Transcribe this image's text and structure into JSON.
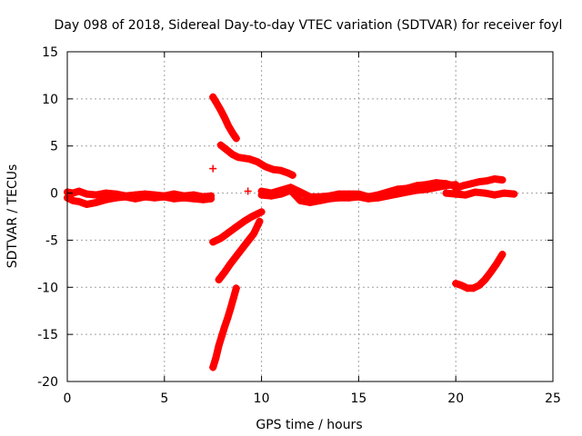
{
  "chart_data": {
    "type": "scatter",
    "title": "Day 098 of 2018, Sidereal Day-to-day VTEC variation (SDTVAR) for receiver foyl",
    "xlabel": "GPS time / hours",
    "ylabel": "SDTVAR / TECUs",
    "xlim": [
      0,
      25
    ],
    "ylim": [
      -20,
      15
    ],
    "xticks": [
      0,
      5,
      10,
      15,
      20,
      25
    ],
    "yticks": [
      -20,
      -15,
      -10,
      -5,
      0,
      5,
      10,
      15
    ],
    "xtick_labels": [
      "0",
      "5",
      "10",
      "15",
      "20",
      "25"
    ],
    "ytick_labels": [
      "-20",
      "-15",
      "-10",
      "-5",
      "0",
      "5",
      "10",
      "15"
    ],
    "grid": true,
    "marker": "+",
    "color": "#ff0000",
    "series": [
      {
        "name": "band-early-a",
        "x": [
          0.0,
          0.3,
          0.6,
          1.0,
          1.5,
          2.0,
          2.5,
          3.0,
          3.5,
          4.0,
          4.5,
          5.0,
          5.5,
          6.0,
          6.5,
          7.0,
          7.4
        ],
        "y": [
          -0.5,
          -0.8,
          -0.9,
          -1.2,
          -1.0,
          -0.7,
          -0.5,
          -0.4,
          -0.6,
          -0.4,
          -0.5,
          -0.4,
          -0.6,
          -0.5,
          -0.6,
          -0.7,
          -0.6
        ]
      },
      {
        "name": "band-early-b",
        "x": [
          0.0,
          0.3,
          0.6,
          1.0,
          1.5,
          2.0,
          2.5,
          3.0,
          3.5,
          4.0,
          4.5,
          5.0,
          5.5,
          6.0,
          6.5,
          7.0,
          7.4
        ],
        "y": [
          0.1,
          0.0,
          0.2,
          -0.1,
          -0.2,
          0.0,
          -0.1,
          -0.3,
          -0.2,
          -0.1,
          -0.2,
          -0.3,
          -0.1,
          -0.3,
          -0.2,
          -0.4,
          -0.3
        ]
      },
      {
        "name": "band-mid-a",
        "x": [
          10.0,
          10.5,
          11.0,
          11.5,
          12.0,
          12.5,
          13.0,
          13.5,
          14.0,
          14.5,
          15.0,
          15.5,
          16.0,
          16.5,
          17.0,
          17.5,
          18.0,
          18.5,
          19.0,
          19.5,
          20.0
        ],
        "y": [
          -0.2,
          -0.3,
          -0.1,
          0.3,
          -0.8,
          -1.0,
          -0.8,
          -0.6,
          -0.5,
          -0.5,
          -0.4,
          -0.6,
          -0.5,
          -0.3,
          -0.1,
          0.1,
          0.3,
          0.4,
          0.6,
          0.8,
          0.9
        ]
      },
      {
        "name": "band-mid-b",
        "x": [
          10.0,
          10.5,
          11.0,
          11.5,
          12.0,
          12.5,
          13.0,
          13.5,
          14.0,
          14.5,
          15.0,
          15.5,
          16.0,
          16.5,
          17.0,
          17.5,
          18.0,
          18.5,
          19.0,
          19.5,
          20.0
        ],
        "y": [
          0.2,
          0.0,
          0.3,
          0.6,
          0.1,
          -0.4,
          -0.4,
          -0.3,
          -0.1,
          -0.1,
          -0.1,
          -0.4,
          -0.2,
          0.1,
          0.4,
          0.5,
          0.8,
          0.9,
          1.1,
          1.0,
          0.7
        ]
      },
      {
        "name": "band-late-a",
        "x": [
          20.0,
          20.4,
          20.8,
          21.2,
          21.6,
          22.0,
          22.4
        ],
        "y": [
          0.5,
          0.8,
          1.0,
          1.2,
          1.3,
          1.5,
          1.4
        ]
      },
      {
        "name": "band-late-b",
        "x": [
          19.5,
          20.0,
          20.5,
          21.0,
          21.5,
          22.0,
          22.5,
          23.0
        ],
        "y": [
          0.0,
          -0.1,
          -0.2,
          0.1,
          0.0,
          -0.2,
          0.0,
          -0.1
        ]
      },
      {
        "name": "arc-upper-1",
        "x": [
          7.5,
          7.7,
          7.9,
          8.1,
          8.3,
          8.5,
          8.7
        ],
        "y": [
          10.2,
          9.5,
          8.8,
          8.0,
          7.1,
          6.4,
          5.8
        ]
      },
      {
        "name": "arc-upper-2",
        "x": [
          7.9,
          8.2,
          8.5,
          8.8,
          9.1,
          9.4,
          9.8,
          10.2,
          10.6,
          11.0,
          11.4,
          11.6
        ],
        "y": [
          5.1,
          4.6,
          4.1,
          3.8,
          3.7,
          3.6,
          3.3,
          2.8,
          2.5,
          2.4,
          2.1,
          1.9
        ]
      },
      {
        "name": "arc-lower-1",
        "x": [
          7.5,
          7.9,
          8.3,
          8.7,
          9.1,
          9.5,
          9.8,
          10.0
        ],
        "y": [
          -5.2,
          -4.8,
          -4.2,
          -3.6,
          -3.0,
          -2.5,
          -2.2,
          -2.0
        ]
      },
      {
        "name": "arc-lower-2",
        "x": [
          7.8,
          8.1,
          8.4,
          8.7,
          9.0,
          9.3,
          9.6,
          9.9
        ],
        "y": [
          -9.2,
          -8.4,
          -7.5,
          -6.7,
          -5.9,
          -5.1,
          -4.3,
          -3.0
        ]
      },
      {
        "name": "arc-lower-3",
        "x": [
          7.5,
          7.65,
          7.8,
          7.95,
          8.1,
          8.25,
          8.4,
          8.55,
          8.7
        ],
        "y": [
          -18.5,
          -17.5,
          -16.2,
          -15.2,
          -14.2,
          -13.3,
          -12.3,
          -11.2,
          -10.1
        ]
      },
      {
        "name": "arc-late",
        "x": [
          20.0,
          20.3,
          20.6,
          20.9,
          21.2,
          21.5,
          21.8,
          22.1,
          22.4
        ],
        "y": [
          -9.6,
          -9.8,
          -10.1,
          -10.1,
          -9.8,
          -9.2,
          -8.4,
          -7.5,
          -6.5
        ]
      },
      {
        "name": "isolated",
        "x": [
          7.5,
          9.3,
          10.8
        ],
        "y": [
          2.6,
          0.2,
          0.1
        ]
      }
    ]
  }
}
